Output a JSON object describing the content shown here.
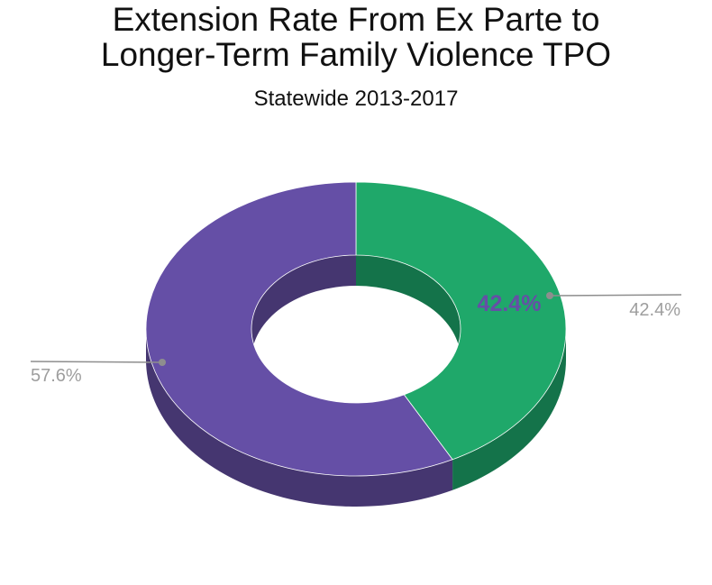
{
  "chart_data": {
    "type": "pie",
    "variant": "donut-3d",
    "title_lines": [
      "Extension Rate From Ex Parte to",
      "Longer-Term Family Violence TPO"
    ],
    "subtitle": "Statewide 2013-2017",
    "slices": [
      {
        "value": 42.4,
        "label": "42.4%",
        "color": "#1fa86a",
        "side_color": "#14734a"
      },
      {
        "value": 57.6,
        "label": "57.6%",
        "color": "#654fa6",
        "side_color": "#453670"
      }
    ],
    "inner_label": {
      "text": "42.4%",
      "color": "#654fa6"
    },
    "callout_color": "#8e8e8e",
    "callout_text_color": "#9e9e9e"
  }
}
